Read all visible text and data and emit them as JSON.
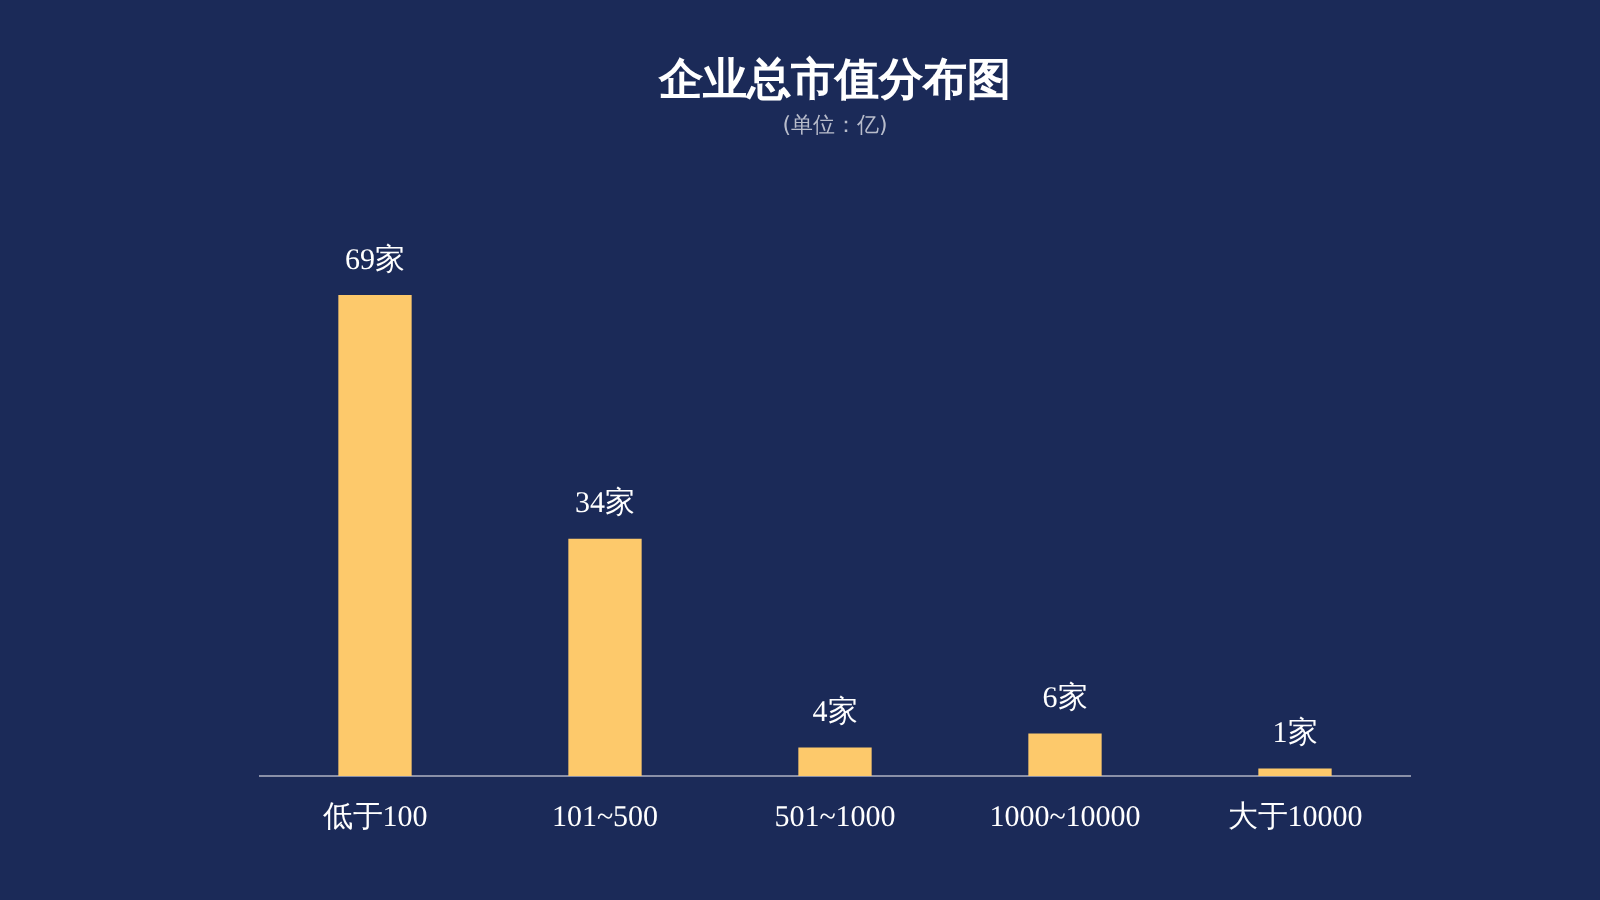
{
  "chart_data": {
    "type": "bar",
    "title": "企业总市值分布图",
    "subtitle": "(单位：亿)",
    "categories": [
      "低于100",
      "101~500",
      "501~1000",
      "1000~10000",
      "大于10000"
    ],
    "values": [
      69,
      34,
      4,
      6,
      1
    ],
    "value_labels": [
      "69家",
      "34家",
      "4家",
      "6家",
      "1家"
    ],
    "color": "#fdc96b",
    "tick_labels": "x",
    "grid": false,
    "legend": false
  }
}
